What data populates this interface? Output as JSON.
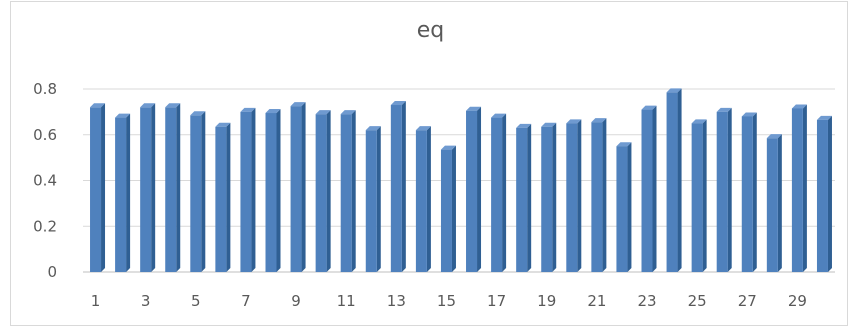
{
  "chart_data": {
    "type": "bar",
    "title": "eq",
    "xlabel": "",
    "ylabel": "",
    "ylim": [
      0,
      0.8
    ],
    "yticks": [
      0,
      0.2,
      0.4,
      0.6,
      0.8
    ],
    "ytick_labels": [
      "0",
      "0.2",
      "0.4",
      "0.6",
      "0.8"
    ],
    "categories": [
      "1",
      "2",
      "3",
      "4",
      "5",
      "6",
      "7",
      "8",
      "9",
      "10",
      "11",
      "12",
      "13",
      "14",
      "15",
      "16",
      "17",
      "18",
      "19",
      "20",
      "21",
      "22",
      "23",
      "24",
      "25",
      "26",
      "27",
      "28",
      "29",
      "30"
    ],
    "xtick_labels": [
      "1",
      "3",
      "5",
      "7",
      "9",
      "11",
      "13",
      "15",
      "17",
      "19",
      "21",
      "23",
      "25",
      "27",
      "29"
    ],
    "values": [
      0.72,
      0.675,
      0.72,
      0.72,
      0.685,
      0.635,
      0.7,
      0.695,
      0.725,
      0.69,
      0.69,
      0.62,
      0.73,
      0.62,
      0.535,
      0.705,
      0.675,
      0.63,
      0.635,
      0.65,
      0.655,
      0.55,
      0.71,
      0.785,
      0.65,
      0.7,
      0.68,
      0.585,
      0.715,
      0.665
    ],
    "grid": true,
    "legend": "none",
    "bar_color": "#4f81bd"
  }
}
